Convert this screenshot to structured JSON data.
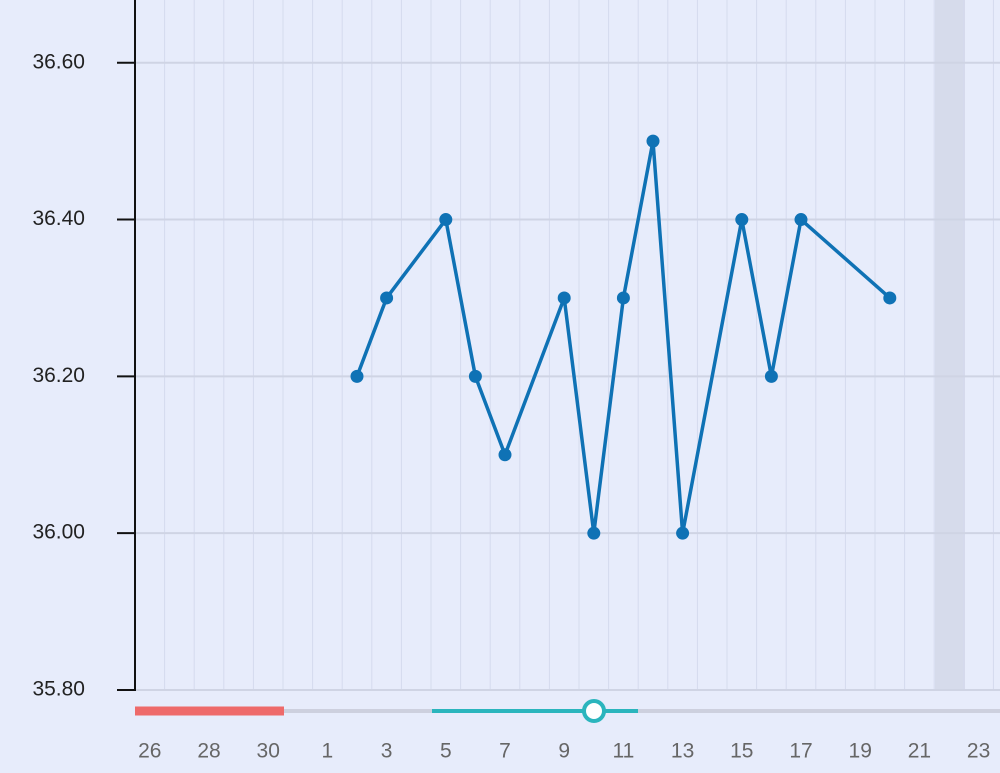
{
  "chart_data": {
    "type": "line",
    "categories": [
      "26",
      null,
      "28",
      null,
      "30",
      null,
      "1",
      null,
      "3",
      null,
      "5",
      null,
      "7",
      null,
      "9",
      null,
      "11",
      null,
      "13",
      null,
      "15",
      null,
      "17",
      null,
      "19",
      null,
      "21",
      null,
      "23"
    ],
    "series": [
      {
        "color": "#0f72b5",
        "values": [
          null,
          null,
          null,
          null,
          null,
          null,
          null,
          36.2,
          36.3,
          null,
          36.4,
          36.2,
          36.1,
          null,
          36.3,
          36.0,
          36.3,
          36.5,
          36.0,
          null,
          36.4,
          36.2,
          36.4,
          null,
          null,
          36.3,
          null,
          null,
          null
        ]
      }
    ],
    "connect_gaps": true,
    "ylim": [
      35.8,
      36.68
    ],
    "yticks": [
      {
        "value": 35.8,
        "label": "35.80"
      },
      {
        "value": 36.0,
        "label": "36.00"
      },
      {
        "value": 36.2,
        "label": "36.20"
      },
      {
        "value": 36.4,
        "label": "36.40"
      },
      {
        "value": 36.6,
        "label": "36.60"
      }
    ],
    "grid": true
  }
}
